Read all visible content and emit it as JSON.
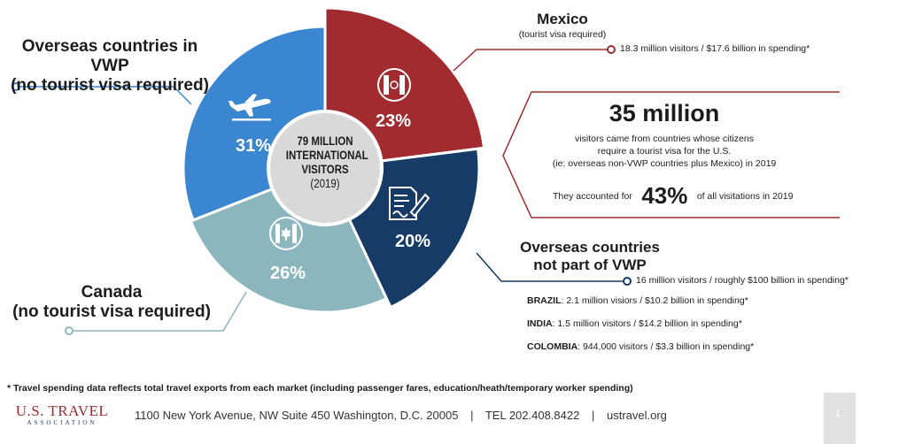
{
  "colors": {
    "vwp": "#3a86d1",
    "mexico": "#a12b2e",
    "non_vwp": "#163b66",
    "canada": "#8bb6bd",
    "center": "#d9d9d9",
    "line_red": "#a12b2e",
    "line_blue": "#163b66",
    "line_teal": "#8bb6bd",
    "line_vwp": "#3a86d1"
  },
  "pie": {
    "center_lines": [
      "79 MILLION",
      "INTERNATIONAL",
      "VISITORS"
    ],
    "center_year": "(2019)",
    "segments": [
      {
        "id": "mexico",
        "percent": 23,
        "label": "23%",
        "icon": "mexico-flag-icon"
      },
      {
        "id": "non_vwp",
        "percent": 20,
        "label": "20%",
        "icon": "visa-document-icon"
      },
      {
        "id": "canada",
        "percent": 26,
        "label": "26%",
        "icon": "canada-flag-icon"
      },
      {
        "id": "vwp",
        "percent": 31,
        "label": "31%",
        "icon": "airplane-icon"
      }
    ]
  },
  "vwp_callout": {
    "title_line1": "Overseas countries in VWP",
    "title_line2": "(no tourist visa required)"
  },
  "mexico_callout": {
    "title": "Mexico",
    "subtitle": "(tourist visa required)",
    "stat": "18.3 million visitors / $17.6 billion in spending*"
  },
  "visa_box": {
    "headline": "35 million",
    "line1": "visitors came from countries whose citizens",
    "line2": "require a tourist visa for the U.S.",
    "line3": "(ie: overseas non-VWP countries plus Mexico) in 2019",
    "accounted_prefix": "They accounted for",
    "accounted_value": "43%",
    "accounted_suffix": "of all visitations in 2019"
  },
  "non_vwp_callout": {
    "title_line1": "Overseas countries",
    "title_line2": "not part of VWP",
    "stat": "16 million visitors / roughly $100 billion in spending*",
    "countries": [
      {
        "name": "BRAZIL",
        "detail": ": 2.1 million visiors / $10.2 billion in spending*"
      },
      {
        "name": "INDIA",
        "detail": ": 1.5 million visitors / $14.2 billion in spending*"
      },
      {
        "name": "COLOMBIA",
        "detail": ": 944,000 visitors / $3.3 billion in spending*"
      }
    ]
  },
  "canada_callout": {
    "title_line1": "Canada",
    "title_line2": "(no tourist visa required)"
  },
  "footnote": "* Travel spending data reflects total travel exports from each market (including passenger fares, education/heath/temporary worker spending)",
  "footer": {
    "logo_main": "U.S. TRAVEL",
    "logo_sub": "ASSOCIATION",
    "address": "1100 New York Avenue, NW  Suite 450  Washington, D.C. 20005",
    "sep": "|",
    "phone": "TEL 202.408.8422",
    "website": "ustravel.org",
    "page_number": "1"
  }
}
